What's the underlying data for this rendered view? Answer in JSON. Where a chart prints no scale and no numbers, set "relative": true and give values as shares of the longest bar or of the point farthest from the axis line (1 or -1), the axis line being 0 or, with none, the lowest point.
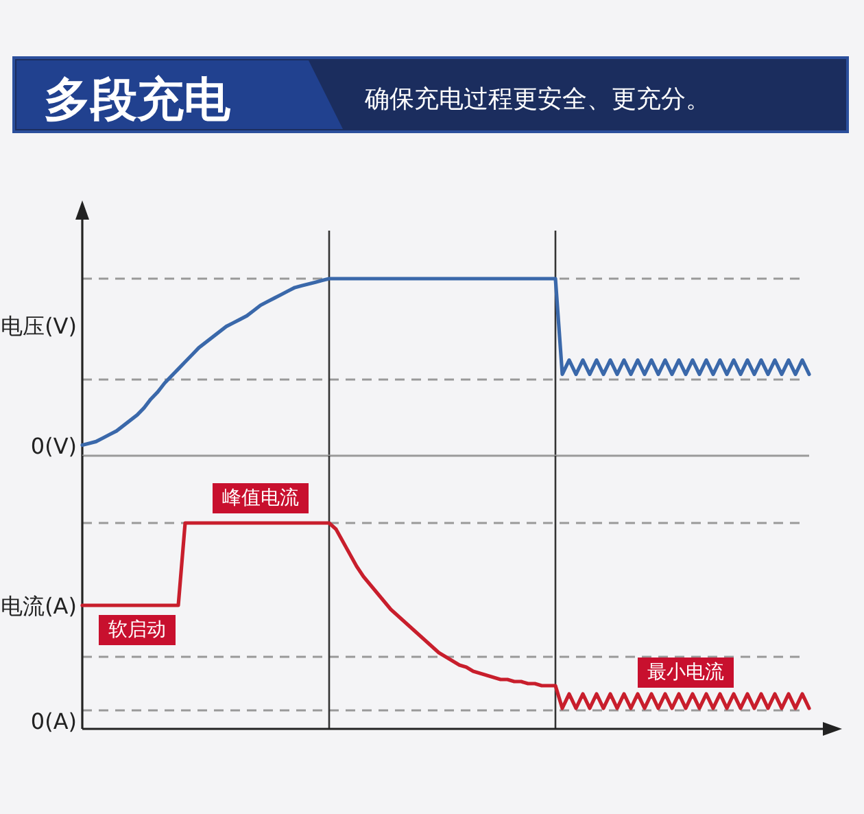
{
  "chart_data": [
    {
      "type": "line",
      "title": "多段充电",
      "subtitle": "确保充电过程更安全、更充分。",
      "ylabel": "电压(V)",
      "relative": true,
      "categories": [
        null,
        null,
        null,
        null,
        null,
        null,
        null,
        null,
        null,
        null,
        null,
        null,
        null,
        null,
        null,
        null,
        null,
        null,
        null,
        null,
        null,
        null,
        null,
        null,
        null,
        null,
        null,
        null,
        null,
        null,
        null,
        null,
        null,
        null,
        null,
        null,
        null,
        null,
        null,
        null,
        null,
        null,
        null,
        null,
        null,
        null,
        null,
        null,
        null,
        null,
        null,
        null,
        null,
        null,
        null,
        null,
        null,
        null,
        null,
        null,
        null,
        null,
        null,
        null,
        null,
        null,
        null,
        null,
        null,
        null,
        null,
        null,
        null,
        null,
        null,
        null,
        null,
        null,
        null,
        null,
        null,
        null,
        null,
        null,
        null,
        null,
        null,
        null,
        null,
        null,
        null,
        null,
        null,
        null,
        null,
        null,
        null,
        null,
        null,
        null,
        null,
        null,
        null,
        null,
        null,
        null,
        null
      ],
      "series": [
        {
          "color": "#3a68aa",
          "values": [
            0.06,
            0.07,
            0.08,
            0.1,
            0.12,
            0.14,
            0.17,
            0.2,
            0.23,
            0.27,
            0.32,
            0.36,
            0.41,
            0.45,
            0.49,
            0.53,
            0.57,
            0.61,
            0.64,
            0.67,
            0.7,
            0.73,
            0.75,
            0.77,
            0.79,
            0.82,
            0.85,
            0.87,
            0.89,
            0.91,
            0.93,
            0.95,
            0.96,
            0.97,
            0.98,
            0.99,
            1,
            1,
            1,
            1,
            1,
            1,
            1,
            1,
            1,
            1,
            1,
            1,
            1,
            1,
            1,
            1,
            1,
            1,
            1,
            1,
            1,
            1,
            1,
            1,
            1,
            1,
            1,
            1,
            1,
            1,
            1,
            1,
            1,
            1,
            0.46,
            0.54,
            0.46,
            0.54,
            0.46,
            0.54,
            0.46,
            0.54,
            0.46,
            0.54,
            0.46,
            0.54,
            0.46,
            0.54,
            0.46,
            0.54,
            0.46,
            0.54,
            0.46,
            0.54,
            0.46,
            0.54,
            0.46,
            0.54,
            0.46,
            0.54,
            0.46,
            0.54,
            0.46,
            0.54,
            0.46,
            0.54,
            0.46,
            0.54,
            0.46,
            0.54,
            0.46
          ]
        }
      ],
      "ref_lines": [
        {
          "axis": "y",
          "value": 1,
          "color": "#999999",
          "line_style": "dashed"
        },
        {
          "axis": "y",
          "value": 0.43,
          "color": "#999999",
          "line_style": "dashed"
        }
      ],
      "annotations": [
        "0(V)"
      ]
    },
    {
      "type": "line",
      "ylabel": "电流(A)",
      "relative": true,
      "categories": [
        null,
        null,
        null,
        null,
        null,
        null,
        null,
        null,
        null,
        null,
        null,
        null,
        null,
        null,
        null,
        null,
        null,
        null,
        null,
        null,
        null,
        null,
        null,
        null,
        null,
        null,
        null,
        null,
        null,
        null,
        null,
        null,
        null,
        null,
        null,
        null,
        null,
        null,
        null,
        null,
        null,
        null,
        null,
        null,
        null,
        null,
        null,
        null,
        null,
        null,
        null,
        null,
        null,
        null,
        null,
        null,
        null,
        null,
        null,
        null,
        null,
        null,
        null,
        null,
        null,
        null,
        null,
        null,
        null,
        null,
        null,
        null,
        null,
        null,
        null,
        null,
        null,
        null,
        null,
        null,
        null,
        null,
        null,
        null,
        null,
        null,
        null,
        null,
        null,
        null,
        null,
        null,
        null,
        null,
        null,
        null,
        null,
        null,
        null,
        null,
        null,
        null,
        null,
        null,
        null,
        null,
        null
      ],
      "series": [
        {
          "color": "#c81e2c",
          "values": [
            0.6,
            0.6,
            0.6,
            0.6,
            0.6,
            0.6,
            0.6,
            0.6,
            0.6,
            0.6,
            0.6,
            0.6,
            0.6,
            0.6,
            0.6,
            1,
            1,
            1,
            1,
            1,
            1,
            1,
            1,
            1,
            1,
            1,
            1,
            1,
            1,
            1,
            1,
            1,
            1,
            1,
            1,
            1,
            1,
            0.97,
            0.91,
            0.85,
            0.79,
            0.74,
            0.7,
            0.66,
            0.62,
            0.58,
            0.55,
            0.52,
            0.49,
            0.46,
            0.43,
            0.4,
            0.37,
            0.35,
            0.33,
            0.31,
            0.3,
            0.28,
            0.27,
            0.26,
            0.25,
            0.24,
            0.24,
            0.23,
            0.23,
            0.22,
            0.22,
            0.21,
            0.21,
            0.21,
            0.1,
            0.17,
            0.1,
            0.17,
            0.1,
            0.17,
            0.1,
            0.17,
            0.1,
            0.17,
            0.1,
            0.17,
            0.1,
            0.17,
            0.1,
            0.17,
            0.1,
            0.17,
            0.1,
            0.17,
            0.1,
            0.17,
            0.1,
            0.17,
            0.1,
            0.17,
            0.1,
            0.17,
            0.1,
            0.17,
            0.1,
            0.17,
            0.1,
            0.17,
            0.1,
            0.17,
            0.1
          ]
        }
      ],
      "ref_lines": [
        {
          "axis": "y",
          "value": 1,
          "color": "#999999",
          "line_style": "dashed"
        },
        {
          "axis": "y",
          "value": 0.35,
          "color": "#999999",
          "line_style": "dashed"
        },
        {
          "axis": "y",
          "value": 0.09,
          "color": "#999999",
          "line_style": "dashed"
        }
      ],
      "annotations": [
        "0(A)",
        "峰值电流",
        "软启动",
        "最小电流"
      ]
    }
  ]
}
